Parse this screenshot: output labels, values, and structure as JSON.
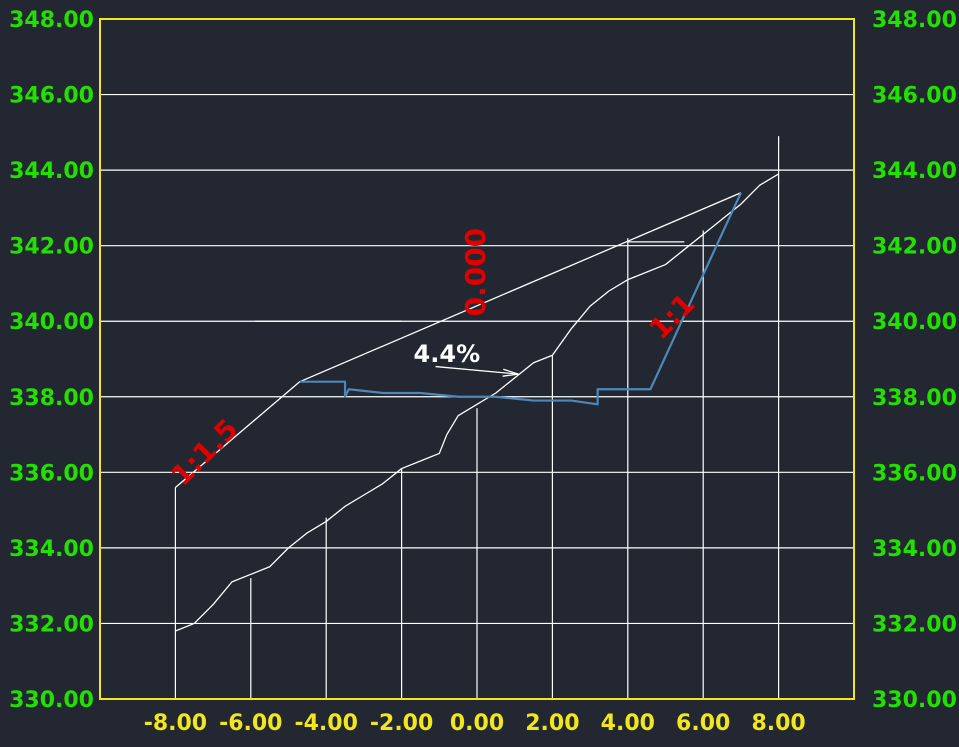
{
  "chart_data": {
    "type": "line",
    "title": "",
    "xlabel": "",
    "ylabel": "",
    "xlim": [
      -10.0,
      10.0
    ],
    "ylim": [
      330.0,
      348.0
    ],
    "x_ticks": [
      "-8.00",
      "-6.00",
      "-4.00",
      "-2.00",
      "0.00",
      "2.00",
      "4.00",
      "6.00",
      "8.00"
    ],
    "y_ticks": [
      "330.00",
      "332.00",
      "334.00",
      "336.00",
      "338.00",
      "340.00",
      "342.00",
      "344.00",
      "346.00",
      "348.00"
    ],
    "grid": true,
    "colors": {
      "background": "#222731",
      "frame": "#f2e61c",
      "y_tick_labels": "#22e000",
      "x_tick_labels": "#f2e61c",
      "grid": "#ffffff",
      "annotation_red": "#e00000",
      "annotation_white": "#ffffff",
      "design_line": "#4f88b8"
    },
    "vertical_lines": [
      {
        "x": -8.0,
        "y_top": 335.6
      },
      {
        "x": -6.0,
        "y_top": 333.2
      },
      {
        "x": -4.0,
        "y_top": 334.8
      },
      {
        "x": -2.0,
        "y_top": 336.1
      },
      {
        "x": 0.0,
        "y_top": 337.7
      },
      {
        "x": 2.0,
        "y_top": 339.1
      },
      {
        "x": 4.0,
        "y_top": 342.2
      },
      {
        "x": 6.0,
        "y_top": 342.4
      },
      {
        "x": 8.0,
        "y_top": 344.9
      }
    ],
    "series": [
      {
        "color": "#ffffff",
        "x": [
          -8.0,
          -7.5,
          -7.0,
          -6.5,
          -6.0,
          -5.5,
          -5.0,
          -4.5,
          -4.0,
          -3.5,
          -3.0,
          -2.5,
          -2.0,
          -1.5,
          -1.0,
          -0.8,
          -0.5,
          0.0,
          0.5,
          1.0,
          1.5,
          2.0,
          2.5,
          3.0,
          3.5,
          4.0,
          4.5,
          5.0,
          5.5,
          6.0,
          6.5,
          7.0,
          7.5,
          8.0
        ],
        "y": [
          331.8,
          332.0,
          332.5,
          333.1,
          333.3,
          333.5,
          334.0,
          334.4,
          334.7,
          335.1,
          335.4,
          335.7,
          336.1,
          336.3,
          336.5,
          337.0,
          337.5,
          337.8,
          338.1,
          338.5,
          338.9,
          339.1,
          339.8,
          340.4,
          340.8,
          341.1,
          341.3,
          341.5,
          341.9,
          342.3,
          342.7,
          343.1,
          343.6,
          343.9
        ]
      },
      {
        "color": "#ffffff",
        "x": [
          -8.0,
          -4.7,
          7.0
        ],
        "y": [
          335.6,
          338.4,
          343.4
        ]
      },
      {
        "color": "#4f88b8",
        "x": [
          -4.7,
          -3.5,
          -3.5,
          -3.4,
          -2.5,
          -1.5,
          -0.5,
          0.5,
          1.5,
          2.5,
          3.2,
          3.2,
          3.5,
          4.5,
          4.6,
          7.0
        ],
        "y": [
          338.4,
          338.4,
          338.0,
          338.2,
          338.1,
          338.1,
          338.0,
          338.0,
          337.9,
          337.9,
          337.8,
          338.2,
          338.2,
          338.2,
          338.2,
          343.4
        ]
      },
      {
        "color": "#ffffff",
        "x": [
          4.0,
          5.5
        ],
        "y": [
          342.1,
          342.1
        ]
      },
      {
        "color": "#ffffff",
        "x": [
          -5.9,
          -2.0
        ],
        "y": [
          340.0,
          340.0
        ]
      }
    ],
    "annotations": [
      {
        "text": "1:1.5",
        "color": "#e00000",
        "x": -7.2,
        "y": 336.5,
        "rotate": -45
      },
      {
        "text": "0.000",
        "color": "#e00000",
        "x": 0.0,
        "y": 341.3,
        "rotate": -90
      },
      {
        "text": "1:1",
        "color": "#e00000",
        "x": 5.2,
        "y": 340.1,
        "rotate": -45
      },
      {
        "text": "4.4%",
        "color": "#ffffff",
        "x": -0.8,
        "y": 339.1,
        "rotate": 0
      }
    ],
    "arrow": {
      "x1": -1.1,
      "y1": 338.8,
      "x2": 1.1,
      "y2": 338.6,
      "color": "#ffffff"
    }
  }
}
